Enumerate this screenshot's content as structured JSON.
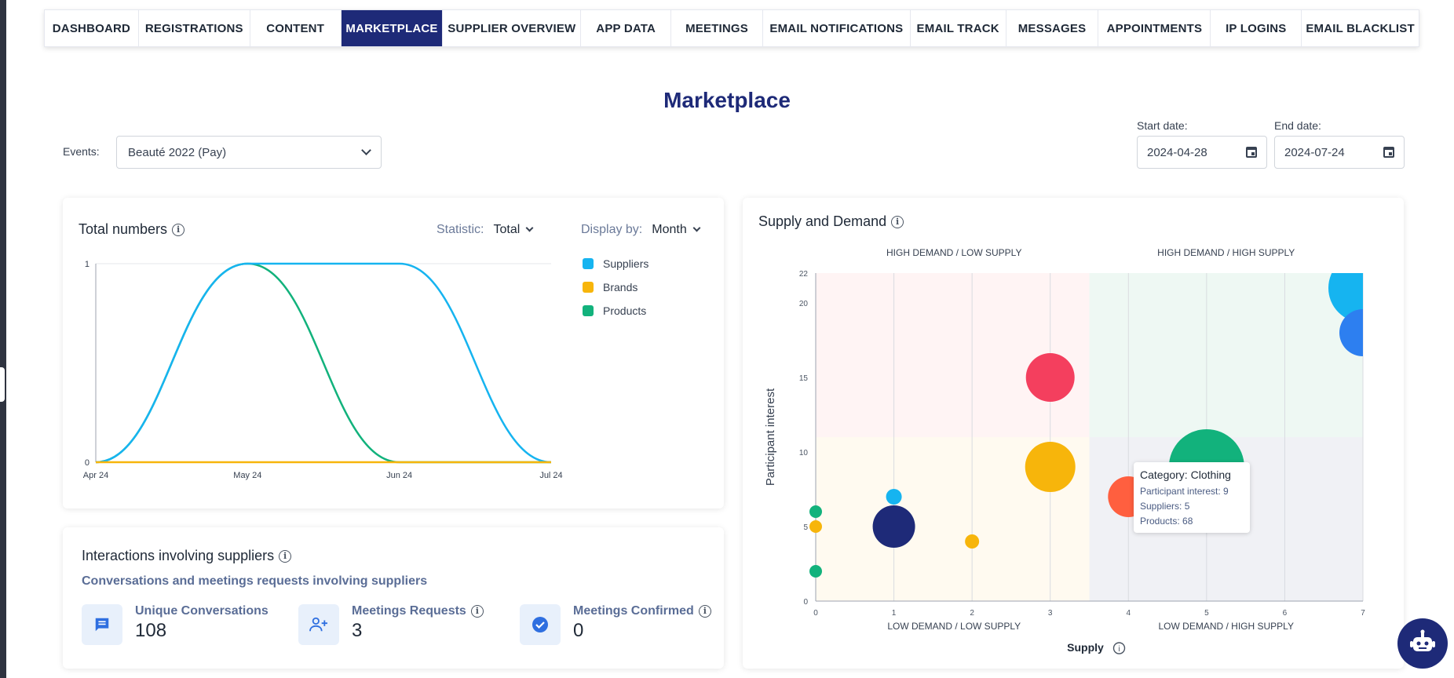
{
  "nav": {
    "tabs": [
      {
        "label": "DASHBOARD",
        "active": false
      },
      {
        "label": "REGISTRATIONS",
        "active": false
      },
      {
        "label": "CONTENT",
        "active": false
      },
      {
        "label": "MARKETPLACE",
        "active": true
      },
      {
        "label": "SUPPLIER OVERVIEW",
        "active": false
      },
      {
        "label": "APP DATA",
        "active": false
      },
      {
        "label": "MEETINGS",
        "active": false
      },
      {
        "label": "EMAIL NOTIFICATIONS",
        "active": false
      },
      {
        "label": "EMAIL TRACK",
        "active": false
      },
      {
        "label": "MESSAGES",
        "active": false
      },
      {
        "label": "APPOINTMENTS",
        "active": false
      },
      {
        "label": "IP LOGINS",
        "active": false
      },
      {
        "label": "EMAIL BLACKLIST",
        "active": false
      }
    ]
  },
  "page": {
    "title": "Marketplace"
  },
  "filters": {
    "events_label": "Events:",
    "event_value": "Beauté 2022 (Pay)",
    "start_label": "Start date:",
    "start_value": "2024-04-28",
    "end_label": "End date:",
    "end_value": "2024-07-24"
  },
  "total_numbers": {
    "title": "Total numbers",
    "info_icon": "info-icon",
    "statistic_label": "Statistic:",
    "statistic_value": "Total",
    "display_label": "Display by:",
    "display_value": "Month",
    "legend": [
      {
        "label": "Suppliers",
        "color": "#16b4f0"
      },
      {
        "label": "Brands",
        "color": "#f7b50b"
      },
      {
        "label": "Products",
        "color": "#12b27c"
      }
    ]
  },
  "interactions": {
    "title": "Interactions involving suppliers",
    "subtitle": "Conversations and meetings requests involving suppliers",
    "stats": [
      {
        "label": "Unique Conversations",
        "value": "108",
        "icon": "chat-icon"
      },
      {
        "label": "Meetings Requests",
        "value": "3",
        "icon": "user-add-icon"
      },
      {
        "label": "Meetings Confirmed",
        "value": "0",
        "icon": "check-circle-icon"
      }
    ]
  },
  "supply_demand": {
    "title": "Supply and Demand",
    "quadrants": {
      "top_left": "HIGH DEMAND / LOW SUPPLY",
      "top_right": "HIGH DEMAND / HIGH SUPPLY",
      "bottom_left": "LOW DEMAND / LOW SUPPLY",
      "bottom_right": "LOW DEMAND / HIGH SUPPLY"
    },
    "tooltip": {
      "title_prefix": "Category:",
      "title_value": "Clothing",
      "line1": "Participant interest: 9",
      "line2": "Suppliers: 5",
      "line3": "Products: 68"
    }
  },
  "chart_data": [
    {
      "type": "line",
      "title": "Total numbers",
      "x": [
        "Apr 24",
        "May 24",
        "Jun 24",
        "Jul 24"
      ],
      "ylim": [
        0,
        1
      ],
      "yticks": [
        "0",
        "1"
      ],
      "legend_position": "right",
      "series": [
        {
          "name": "Suppliers",
          "values": [
            0,
            1,
            1,
            0
          ],
          "color": "#16b4f0"
        },
        {
          "name": "Brands",
          "values": [
            0,
            0,
            0,
            0
          ],
          "color": "#f7b50b"
        },
        {
          "name": "Products",
          "values": [
            0,
            1,
            0,
            0
          ],
          "color": "#12b27c"
        }
      ]
    },
    {
      "type": "scatter",
      "title": "Supply and Demand",
      "xlabel": "Supply",
      "ylabel": "Participant interest",
      "xlim": [
        0,
        7
      ],
      "ylim": [
        0,
        22
      ],
      "xticks": [
        "0",
        "1",
        "2",
        "3",
        "4",
        "5",
        "6",
        "7"
      ],
      "yticks": [
        "0",
        "5",
        "10",
        "15",
        "20",
        "22"
      ],
      "points": [
        {
          "x": 0,
          "y": 6,
          "size": 8,
          "color": "#12b27c"
        },
        {
          "x": 0,
          "y": 5,
          "size": 8,
          "color": "#f7b50b"
        },
        {
          "x": 0,
          "y": 2,
          "size": 8,
          "color": "#12b27c"
        },
        {
          "x": 1,
          "y": 7,
          "size": 10,
          "color": "#16b4f0"
        },
        {
          "x": 1,
          "y": 5,
          "size": 27,
          "color": "#1e2a78"
        },
        {
          "x": 2,
          "y": 4,
          "size": 9,
          "color": "#f7b50b"
        },
        {
          "x": 3,
          "y": 15,
          "size": 31,
          "color": "#f43f5e"
        },
        {
          "x": 3,
          "y": 9,
          "size": 32,
          "color": "#f7b50b"
        },
        {
          "x": 4,
          "y": 7,
          "size": 26,
          "color": "#ff5f3f"
        },
        {
          "x": 5,
          "y": 9,
          "size": 48,
          "color": "#12b27c"
        },
        {
          "x": 7,
          "y": 21,
          "size": 44,
          "color": "#16b4f0"
        },
        {
          "x": 7,
          "y": 18,
          "size": 30,
          "color": "#2d7ff0"
        }
      ]
    }
  ]
}
